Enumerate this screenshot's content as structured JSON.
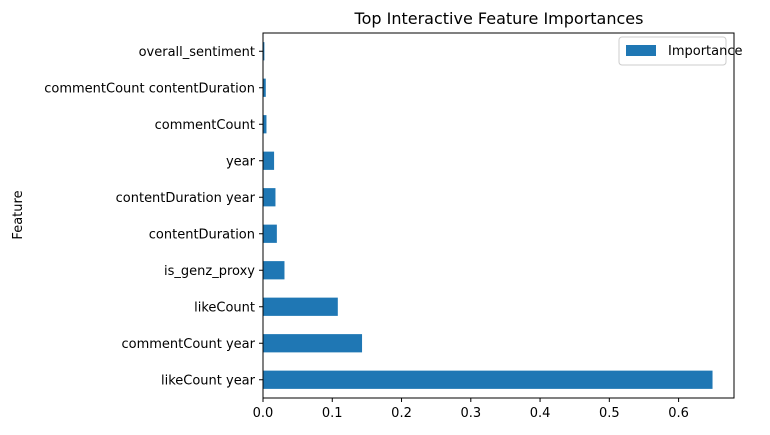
{
  "chart_data": {
    "type": "bar",
    "orientation": "horizontal",
    "title": "Top Interactive Feature Importances",
    "xlabel": "",
    "ylabel": "Feature",
    "categories": [
      "likeCount year",
      "commentCount year",
      "likeCount",
      "is_genz_proxy",
      "contentDuration",
      "contentDuration year",
      "year",
      "commentCount",
      "commentCount contentDuration",
      "overall_sentiment"
    ],
    "series": [
      {
        "name": "Importance",
        "color": "#1f77b4",
        "values": [
          0.649,
          0.143,
          0.108,
          0.031,
          0.02,
          0.018,
          0.016,
          0.005,
          0.004,
          0.002
        ]
      }
    ],
    "xlim": [
      0,
      0.68
    ],
    "xticks": [
      0.0,
      0.1,
      0.2,
      0.3,
      0.4,
      0.5,
      0.6
    ],
    "xtick_labels": [
      "0.0",
      "0.1",
      "0.2",
      "0.3",
      "0.4",
      "0.5",
      "0.6"
    ],
    "grid": false,
    "legend_position": "top-right"
  }
}
